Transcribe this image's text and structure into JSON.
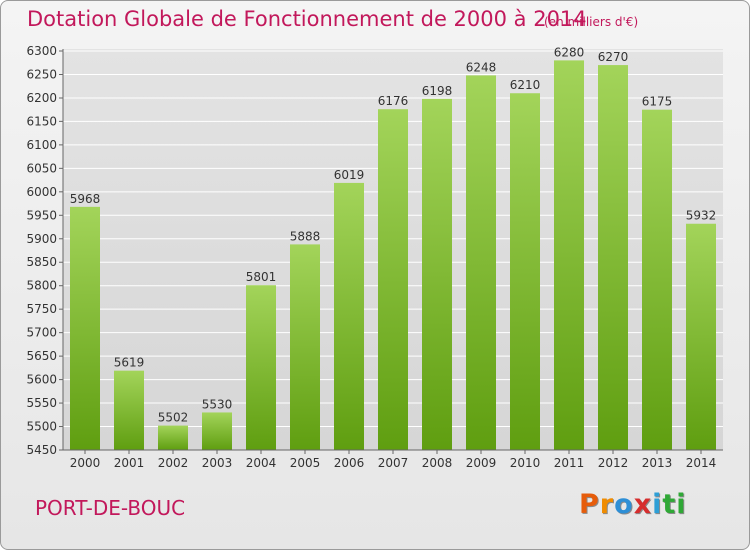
{
  "header": {
    "title": "Dotation Globale de Fonctionnement de 2000 à 2014",
    "unit": "(en milliers d'€)"
  },
  "footer": {
    "commune": "PORT-DE-BOUC",
    "brand": "Proxiti",
    "brand_colors": [
      "#e65c0a",
      "#f08c00",
      "#2e8fd6",
      "#d62e2e",
      "#2e9fd6",
      "#2fa836",
      "#2fa836"
    ]
  },
  "colors": {
    "accent": "#c2185b",
    "bar_top": "#a3d45a",
    "bar_bottom": "#5f9e10",
    "grid": "#ffffff",
    "text": "#333333"
  },
  "chart_data": {
    "type": "bar",
    "categories": [
      "2000",
      "2001",
      "2002",
      "2003",
      "2004",
      "2005",
      "2006",
      "2007",
      "2008",
      "2009",
      "2010",
      "2011",
      "2012",
      "2013",
      "2014"
    ],
    "values": [
      5968,
      5619,
      5502,
      5530,
      5801,
      5888,
      6019,
      6176,
      6198,
      6248,
      6210,
      6280,
      6270,
      6175,
      5932
    ],
    "title": "Dotation Globale de Fonctionnement de 2000 à 2014",
    "ylabel": "(en milliers d'€)",
    "ylim": [
      5450,
      6300
    ],
    "yticks": [
      5450,
      5500,
      5550,
      5600,
      5650,
      5700,
      5750,
      5800,
      5850,
      5900,
      5950,
      6000,
      6050,
      6100,
      6150,
      6200,
      6250,
      6300
    ],
    "grid": true,
    "data_labels": true
  }
}
